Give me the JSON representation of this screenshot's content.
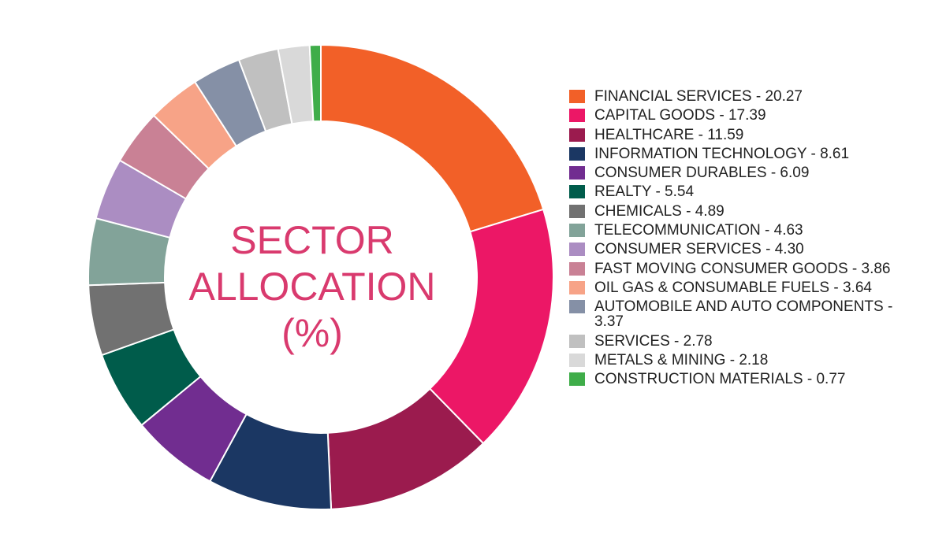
{
  "chart_data": {
    "type": "pie",
    "title": "SECTOR ALLOCATION (%)",
    "title_lines": [
      "SECTOR",
      "ALLOCATION",
      "(%)"
    ],
    "legend_position": "right",
    "slices": [
      {
        "label": "FINANCIAL SERVICES - 20.27",
        "value": 20.27,
        "color": "#f26028"
      },
      {
        "label": "CAPITAL GOODS - 17.39",
        "value": 17.39,
        "color": "#ec1766"
      },
      {
        "label": "HEALTHCARE - 11.59",
        "value": 11.59,
        "color": "#9b1b4e"
      },
      {
        "label": "INFORMATION TECHNOLOGY - 8.61",
        "value": 8.61,
        "color": "#1b3763"
      },
      {
        "label": "CONSUMER DURABLES - 6.09",
        "value": 6.09,
        "color": "#712d90"
      },
      {
        "label": "REALTY - 5.54",
        "value": 5.54,
        "color": "#005c4b"
      },
      {
        "label": "CHEMICALS - 4.89",
        "value": 4.89,
        "color": "#717171"
      },
      {
        "label": "TELECOMMUNICATION - 4.63",
        "value": 4.63,
        "color": "#82a399"
      },
      {
        "label": "CONSUMER SERVICES - 4.30",
        "value": 4.3,
        "color": "#ab8dc2"
      },
      {
        "label": "FAST MOVING CONSUMER GOODS - 3.86",
        "value": 3.86,
        "color": "#c98195"
      },
      {
        "label": "OIL GAS & CONSUMABLE FUELS - 3.64",
        "value": 3.64,
        "color": "#f7a387"
      },
      {
        "label": "AUTOMOBILE AND AUTO COMPONENTS - 3.37",
        "value": 3.37,
        "color": "#8590a6"
      },
      {
        "label": "SERVICES - 2.78",
        "value": 2.78,
        "color": "#c0c0c0"
      },
      {
        "label": "METALS & MINING - 2.18",
        "value": 2.18,
        "color": "#d9d9d9"
      },
      {
        "label": "CONSTRUCTION MATERIALS - 0.77",
        "value": 0.77,
        "color": "#3fad49"
      }
    ]
  }
}
